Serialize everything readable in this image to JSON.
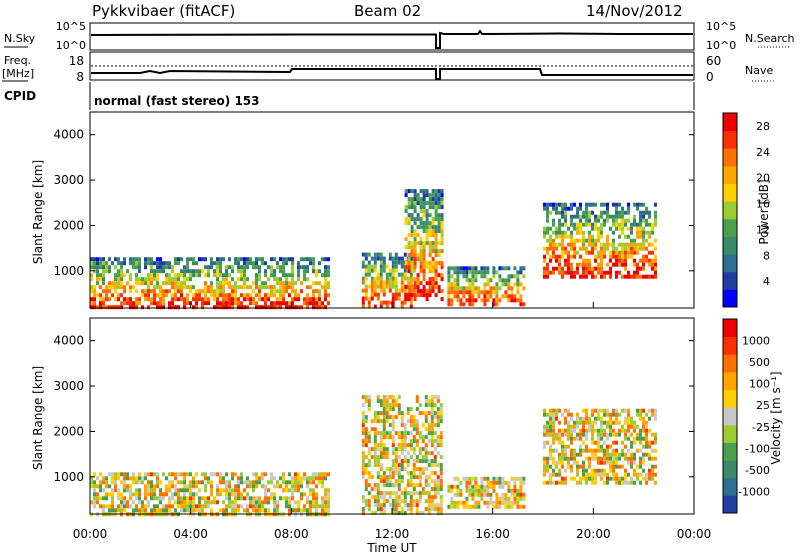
{
  "header": {
    "station": "Pykkvibaer (fitACF)",
    "beam": "Beam 02",
    "date": "14/Nov/2012"
  },
  "panels": {
    "nsky_label": "N.Sky",
    "nsky_ticks": [
      "10^5",
      "10^0"
    ],
    "nsearch_label": "N.Search",
    "nsearch_ticks": [
      "10^5",
      "10^0"
    ],
    "freq_label": "Freq.",
    "freq_unit": "[MHz]",
    "freq_ticks": [
      "18",
      "8"
    ],
    "nave_label": "Nave",
    "nave_ticks": [
      "60",
      "0"
    ],
    "cpid_label": "CPID",
    "cpid_text": "normal (fast stereo) 153"
  },
  "chart_data": [
    {
      "type": "heatmap",
      "name": "power",
      "ylabel": "Slant Range [km]",
      "yticks": [
        "4000",
        "3000",
        "2000",
        "1000"
      ],
      "ytick_values": [
        4000,
        3000,
        2000,
        1000
      ],
      "ylim": [
        180,
        4500
      ],
      "xlim_hours": [
        0,
        24
      ],
      "colorbar_label": "Power [dB]",
      "colorbar_ticks": [
        "28",
        "24",
        "20",
        "16",
        "12",
        "8",
        "4"
      ],
      "colorbar_tick_values": [
        28,
        24,
        20,
        16,
        12,
        8,
        4
      ],
      "colorbar_range": [
        0,
        30
      ],
      "colorbar_colors": [
        "#0000ff",
        "#1f3fa0",
        "#2e6e8e",
        "#3a8a6a",
        "#4aa04a",
        "#9acd32",
        "#ffd000",
        "#ffa500",
        "#ff7000",
        "#ff3000",
        "#ee0000"
      ],
      "regions": [
        {
          "t0": 0.0,
          "t1": 9.5,
          "r0": 180,
          "r1": 1300,
          "level": 22
        },
        {
          "t0": 10.8,
          "t1": 12.9,
          "r0": 180,
          "r1": 1400,
          "level": 20
        },
        {
          "t0": 12.5,
          "t1": 14.0,
          "r0": 400,
          "r1": 2800,
          "level": 10
        },
        {
          "t0": 14.2,
          "t1": 17.2,
          "r0": 300,
          "r1": 1100,
          "level": 12
        },
        {
          "t0": 18.0,
          "t1": 22.5,
          "r0": 900,
          "r1": 2500,
          "level": 18
        }
      ]
    },
    {
      "type": "heatmap",
      "name": "velocity",
      "ylabel": "Slant Range [km]",
      "yticks": [
        "4000",
        "3000",
        "2000",
        "1000"
      ],
      "ytick_values": [
        4000,
        3000,
        2000,
        1000
      ],
      "ylim": [
        180,
        4500
      ],
      "xlim_hours": [
        0,
        24
      ],
      "colorbar_label": "Velocity [m s⁻¹]",
      "colorbar_ticks": [
        "1000",
        "500",
        "100",
        "25",
        "-25",
        "-100",
        "-500",
        "-1000"
      ],
      "colorbar_colors": [
        "#1f3fa0",
        "#2e6e8e",
        "#3a8a6a",
        "#4aa04a",
        "#9acd32",
        "#c8c8c8",
        "#ffd000",
        "#ffa500",
        "#ff7000",
        "#ff3000",
        "#ee0000"
      ],
      "regions": [
        {
          "t0": 0.0,
          "t1": 9.5,
          "r0": 180,
          "r1": 1100,
          "level": -25
        },
        {
          "t0": 10.8,
          "t1": 14.0,
          "r0": 180,
          "r1": 2800,
          "level": -100
        },
        {
          "t0": 14.2,
          "t1": 17.2,
          "r0": 300,
          "r1": 1000,
          "level": 25
        },
        {
          "t0": 18.0,
          "t1": 22.5,
          "r0": 900,
          "r1": 2500,
          "level": -100
        }
      ]
    }
  ],
  "time_axis": {
    "ticks": [
      "00:00",
      "04:00",
      "08:00",
      "12:00",
      "16:00",
      "20:00",
      "00:00"
    ],
    "tick_hours": [
      0,
      4,
      8,
      12,
      16,
      20,
      24
    ],
    "label": "Time UT"
  }
}
